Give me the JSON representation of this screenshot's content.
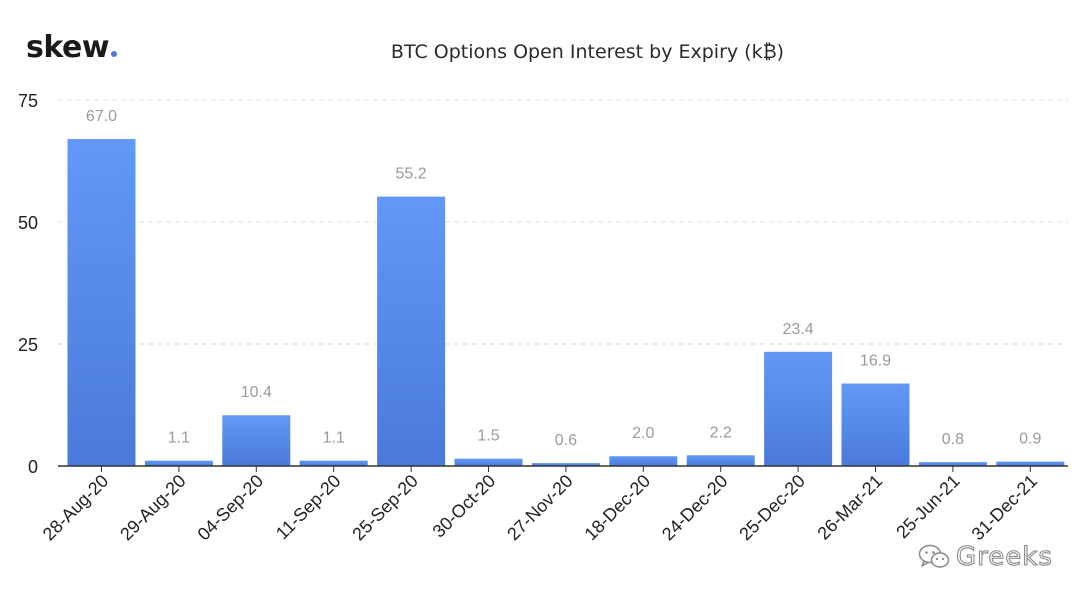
{
  "header": {
    "logo_text": "skew",
    "title": "BTC Options Open Interest by Expiry (k₿)"
  },
  "watermark": {
    "text": "Greeks",
    "icon": "wechat-icon"
  },
  "colors": {
    "bar_top": "#6398f6",
    "bar_bottom": "#4a7ad9",
    "grid": "#dddddd",
    "axis": "#333333",
    "tick_text": "#222222",
    "value_label": "#9a9a9a",
    "logo_dot": "#4a7ad9"
  },
  "chart_data": {
    "type": "bar",
    "title": "BTC Options Open Interest by Expiry (k₿)",
    "xlabel": "",
    "ylabel": "",
    "ylim": [
      0,
      75
    ],
    "yticks": [
      0,
      25,
      50,
      75
    ],
    "grid": true,
    "legend": "none",
    "categories": [
      "28-Aug-20",
      "29-Aug-20",
      "04-Sep-20",
      "11-Sep-20",
      "25-Sep-20",
      "30-Oct-20",
      "27-Nov-20",
      "18-Dec-20",
      "24-Dec-20",
      "25-Dec-20",
      "26-Mar-21",
      "25-Jun-21",
      "31-Dec-21"
    ],
    "values": [
      67.0,
      1.1,
      10.4,
      1.1,
      55.2,
      1.5,
      0.6,
      2.0,
      2.2,
      23.4,
      16.9,
      0.8,
      0.9
    ],
    "value_labels": [
      "67.0",
      "1.1",
      "10.4",
      "1.1",
      "55.2",
      "1.5",
      "0.6",
      "2.0",
      "2.2",
      "23.4",
      "16.9",
      "0.8",
      "0.9"
    ]
  }
}
